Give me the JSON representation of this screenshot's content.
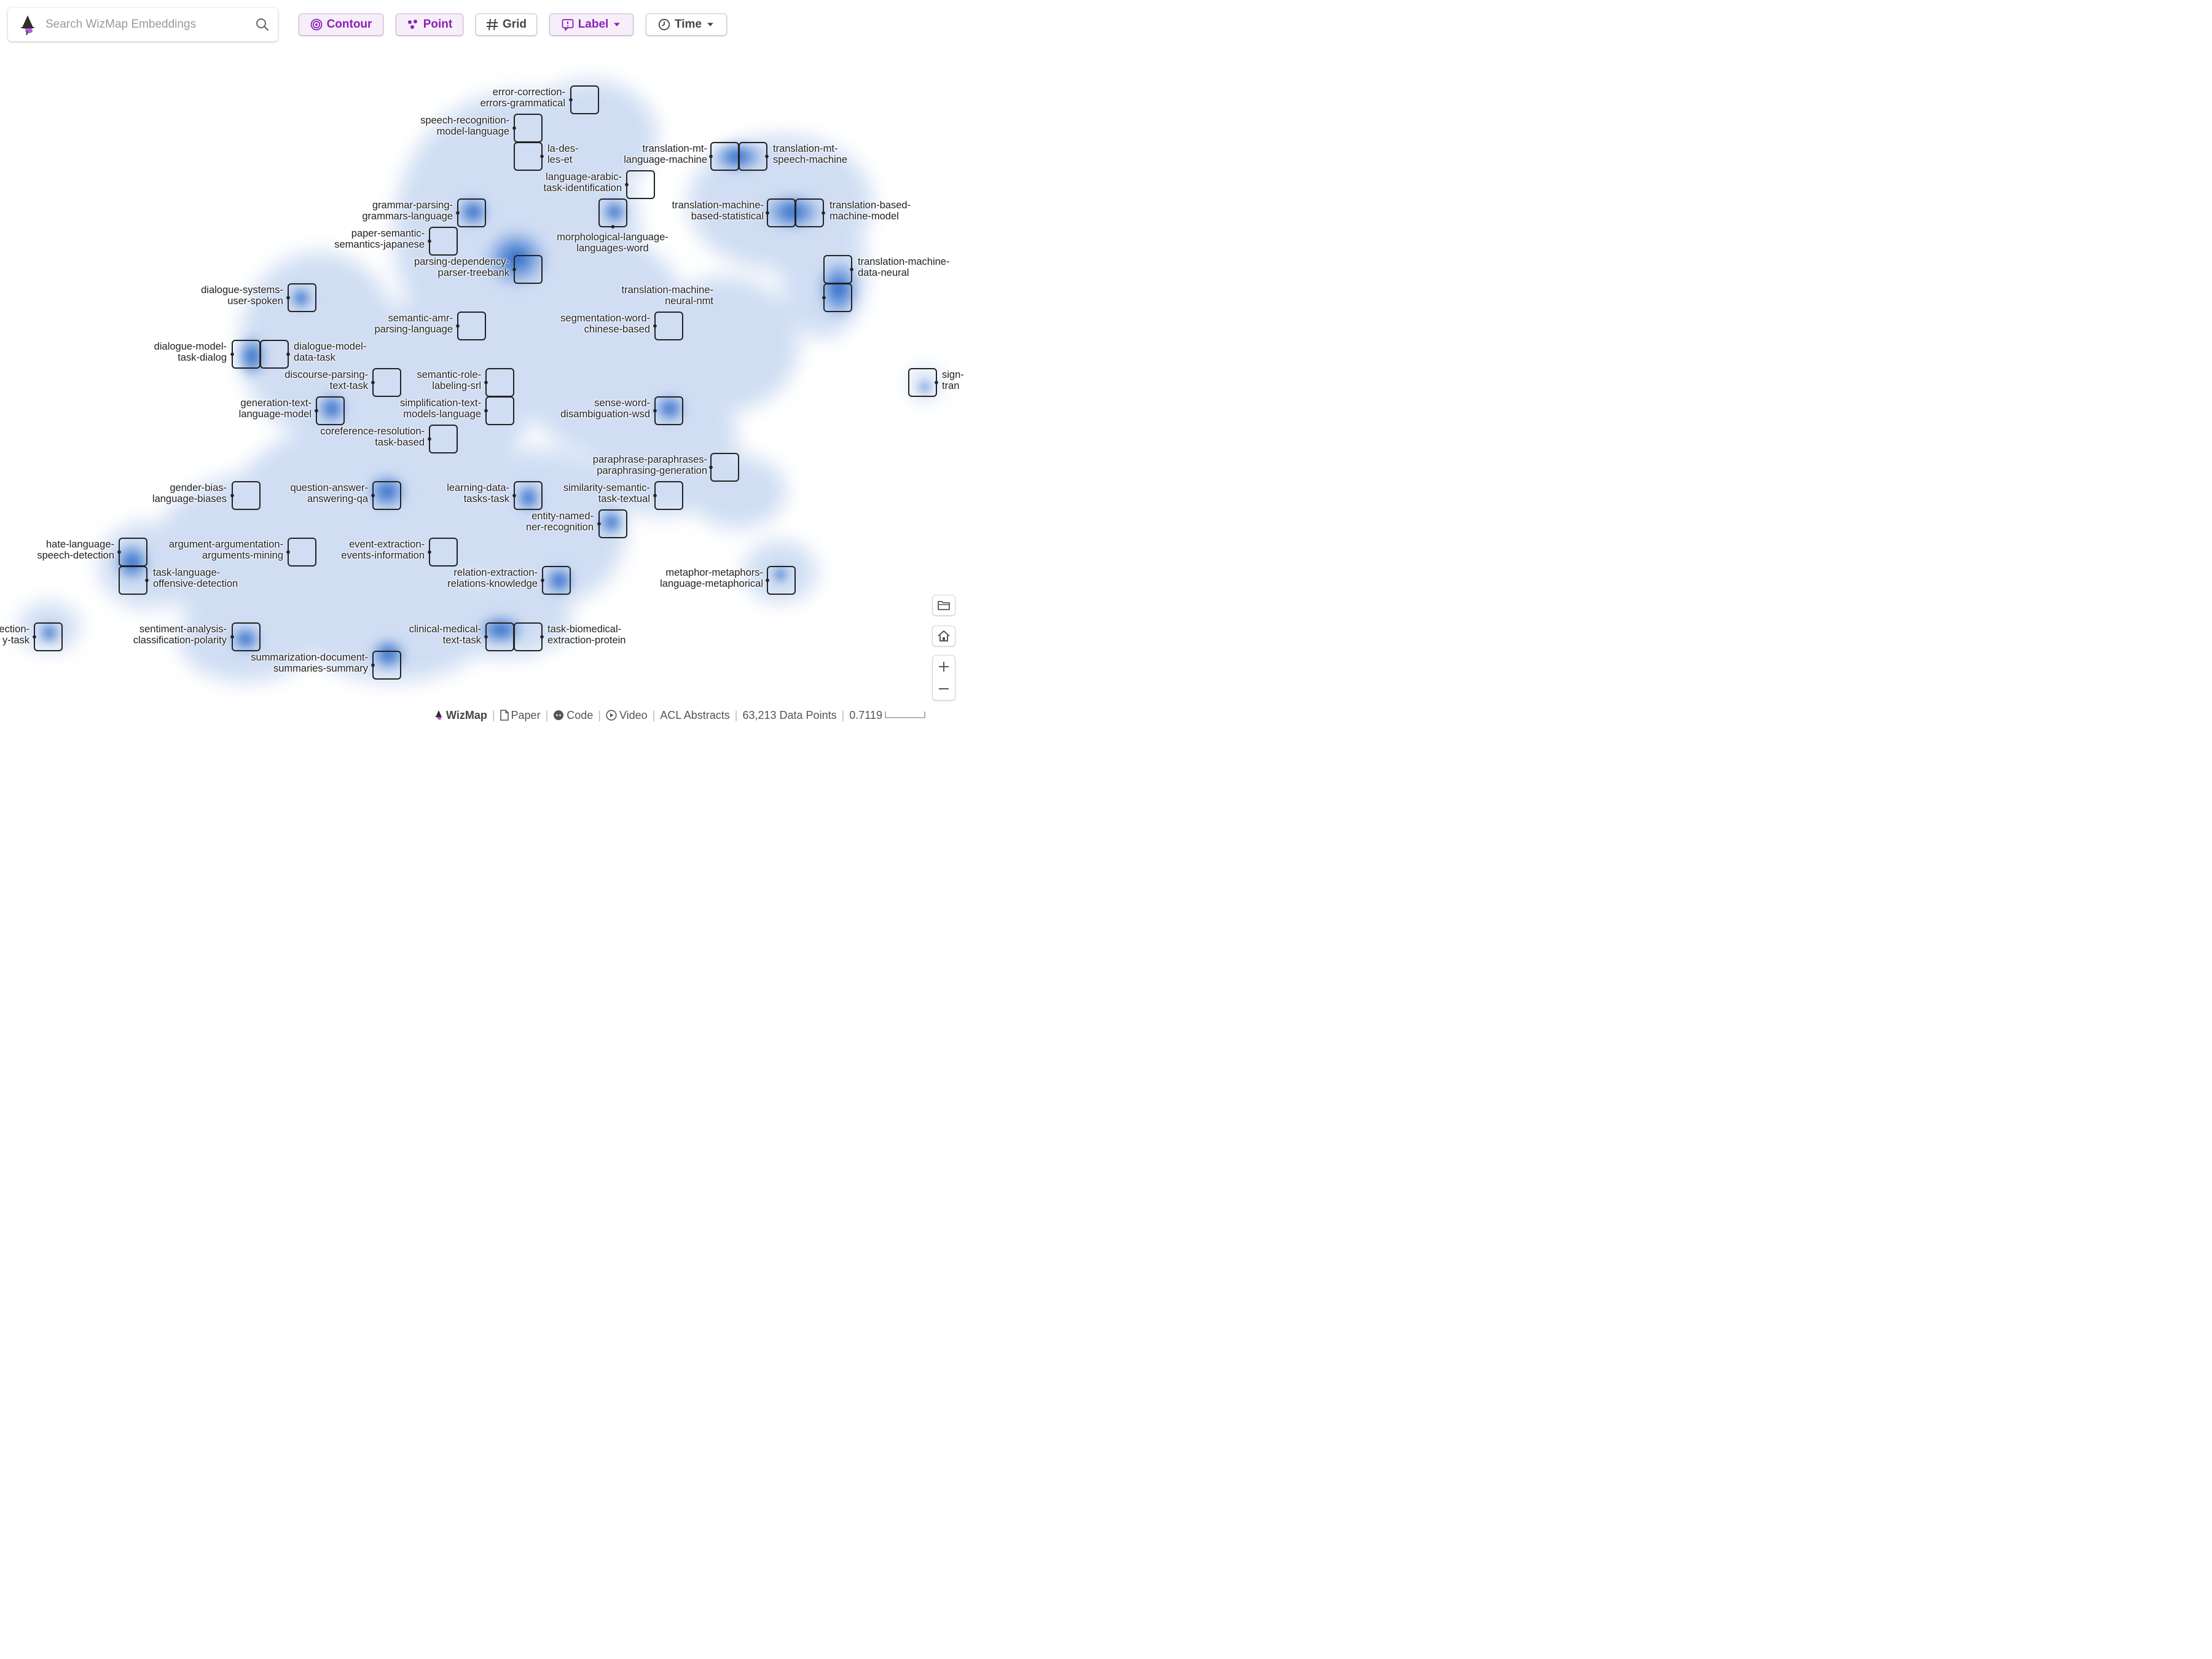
{
  "search": {
    "placeholder": "Search WizMap Embeddings"
  },
  "toolbar": {
    "contour": "Contour",
    "point": "Point",
    "grid": "Grid",
    "label": "Label",
    "time": "Time"
  },
  "colors": {
    "accent": "#8b22b5",
    "accent_bg": "#f6eef9",
    "density": "#1f5fbf"
  },
  "labels": [
    {
      "l1": "error-correction-",
      "l2": "errors-grammatical"
    },
    {
      "l1": "speech-recognition-",
      "l2": "model-language"
    },
    {
      "l1": "la-des-",
      "l2": "les-et"
    },
    {
      "l1": "translation-mt-",
      "l2": "language-machine"
    },
    {
      "l1": "translation-mt-",
      "l2": "speech-machine"
    },
    {
      "l1": "language-arabic-",
      "l2": "task-identification"
    },
    {
      "l1": "grammar-parsing-",
      "l2": "grammars-language"
    },
    {
      "l1": "translation-machine-",
      "l2": "based-statistical"
    },
    {
      "l1": "translation-based-",
      "l2": "machine-model"
    },
    {
      "l1": "morphological-language-",
      "l2": "languages-word"
    },
    {
      "l1": "paper-semantic-",
      "l2": "semantics-japanese"
    },
    {
      "l1": "parsing-dependency-",
      "l2": "parser-treebank"
    },
    {
      "l1": "translation-machine-",
      "l2": "data-neural"
    },
    {
      "l1": "translation-machine-",
      "l2": "neural-nmt"
    },
    {
      "l1": "dialogue-systems-",
      "l2": "user-spoken"
    },
    {
      "l1": "semantic-amr-",
      "l2": "parsing-language"
    },
    {
      "l1": "segmentation-word-",
      "l2": "chinese-based"
    },
    {
      "l1": "dialogue-model-",
      "l2": "task-dialog"
    },
    {
      "l1": "dialogue-model-",
      "l2": "data-task"
    },
    {
      "l1": "discourse-parsing-",
      "l2": "text-task"
    },
    {
      "l1": "semantic-role-",
      "l2": "labeling-srl"
    },
    {
      "l1": "sign-",
      "l2": "tran"
    },
    {
      "l1": "generation-text-",
      "l2": "language-model"
    },
    {
      "l1": "simplification-text-",
      "l2": "models-language"
    },
    {
      "l1": "sense-word-",
      "l2": "disambiguation-wsd"
    },
    {
      "l1": "coreference-resolution-",
      "l2": "task-based"
    },
    {
      "l1": "paraphrase-paraphrases-",
      "l2": "paraphrasing-generation"
    },
    {
      "l1": "gender-bias-",
      "l2": "language-biases"
    },
    {
      "l1": "question-answer-",
      "l2": "answering-qa"
    },
    {
      "l1": "learning-data-",
      "l2": "tasks-task"
    },
    {
      "l1": "similarity-semantic-",
      "l2": "task-textual"
    },
    {
      "l1": "entity-named-",
      "l2": "ner-recognition"
    },
    {
      "l1": "hate-language-",
      "l2": "speech-detection"
    },
    {
      "l1": "argument-argumentation-",
      "l2": "arguments-mining"
    },
    {
      "l1": "event-extraction-",
      "l2": "events-information"
    },
    {
      "l1": "task-language-",
      "l2": "offensive-detection"
    },
    {
      "l1": "relation-extraction-",
      "l2": "relations-knowledge"
    },
    {
      "l1": "metaphor-metaphors-",
      "l2": "language-metaphorical"
    },
    {
      "l1": "ection-",
      "l2": "y-task"
    },
    {
      "l1": "sentiment-analysis-",
      "l2": "classification-polarity"
    },
    {
      "l1": "clinical-medical-",
      "l2": "text-task"
    },
    {
      "l1": "task-biomedical-",
      "l2": "extraction-protein"
    },
    {
      "l1": "summarization-document-",
      "l2": "summaries-summary"
    }
  ],
  "footer": {
    "brand": "WizMap",
    "paper": "Paper",
    "code": "Code",
    "video": "Video",
    "dataset": "ACL Abstracts",
    "points": "63,213 Data Points",
    "scale": "0.7119"
  }
}
